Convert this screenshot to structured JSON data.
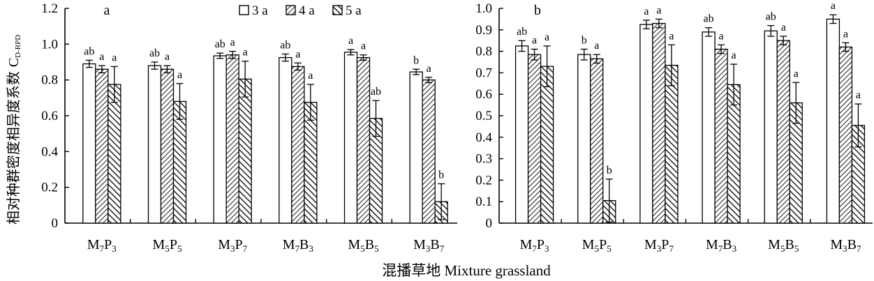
{
  "figure": {
    "ylabel": "相对种群密度相异度系数",
    "ylabel_symbol": "C",
    "ylabel_subscript": "D-RPD",
    "xlabel": "混播草地 Mixture grassland"
  },
  "legend": {
    "items": [
      {
        "label": "3 a",
        "pattern": "open"
      },
      {
        "label": "4 a",
        "pattern": "hatch-dense"
      },
      {
        "label": "5 a",
        "pattern": "hatch-coarse"
      }
    ],
    "position": "top-center of left panel"
  },
  "chart_data": [
    {
      "panel_label": "a",
      "type": "bar",
      "categories": [
        {
          "main": "M",
          "sub1": "7",
          "mid": "P",
          "sub2": "3"
        },
        {
          "main": "M",
          "sub1": "5",
          "mid": "P",
          "sub2": "5"
        },
        {
          "main": "M",
          "sub1": "3",
          "mid": "P",
          "sub2": "7"
        },
        {
          "main": "M",
          "sub1": "7",
          "mid": "B",
          "sub2": "3"
        },
        {
          "main": "M",
          "sub1": "5",
          "mid": "B",
          "sub2": "5"
        },
        {
          "main": "M",
          "sub1": "3",
          "mid": "B",
          "sub2": "7"
        }
      ],
      "ylim": [
        0,
        1.2
      ],
      "yticks": [
        "0",
        "0.2",
        "0.4",
        "0.6",
        "0.8",
        "1.0",
        "1.2"
      ],
      "grid": false,
      "series": [
        {
          "name": "3 a",
          "values": [
            0.89,
            0.88,
            0.935,
            0.925,
            0.955,
            0.845
          ],
          "errors": [
            0.02,
            0.02,
            0.015,
            0.02,
            0.015,
            0.015
          ],
          "letters": [
            "ab",
            "ab",
            "ab",
            "ab",
            "a",
            "b"
          ]
        },
        {
          "name": "4 a",
          "values": [
            0.86,
            0.86,
            0.94,
            0.875,
            0.925,
            0.8
          ],
          "errors": [
            0.02,
            0.02,
            0.02,
            0.02,
            0.015,
            0.015
          ],
          "letters": [
            "a",
            "a",
            "a",
            "a",
            "a",
            "a"
          ]
        },
        {
          "name": "5 a",
          "values": [
            0.775,
            0.68,
            0.805,
            0.675,
            0.585,
            0.12
          ],
          "errors": [
            0.1,
            0.1,
            0.1,
            0.1,
            0.1,
            0.1
          ],
          "letters": [
            "a",
            "a",
            "a",
            "a",
            "ab",
            "b"
          ]
        }
      ]
    },
    {
      "panel_label": "b",
      "type": "bar",
      "categories": [
        {
          "main": "M",
          "sub1": "7",
          "mid": "P",
          "sub2": "3"
        },
        {
          "main": "M",
          "sub1": "5",
          "mid": "P",
          "sub2": "5"
        },
        {
          "main": "M",
          "sub1": "3",
          "mid": "P",
          "sub2": "7"
        },
        {
          "main": "M",
          "sub1": "7",
          "mid": "B",
          "sub2": "3"
        },
        {
          "main": "M",
          "sub1": "5",
          "mid": "B",
          "sub2": "5"
        },
        {
          "main": "M",
          "sub1": "3",
          "mid": "B",
          "sub2": "7"
        }
      ],
      "ylim": [
        0,
        1.0
      ],
      "yticks": [
        "0",
        "0.1",
        "0.2",
        "0.3",
        "0.4",
        "0.5",
        "0.6",
        "0.7",
        "0.8",
        "0.9",
        "1.0"
      ],
      "grid": false,
      "series": [
        {
          "name": "3 a",
          "values": [
            0.825,
            0.785,
            0.925,
            0.89,
            0.895,
            0.95
          ],
          "errors": [
            0.025,
            0.025,
            0.02,
            0.02,
            0.025,
            0.02
          ],
          "letters": [
            "ab",
            "b",
            "a",
            "ab",
            "ab",
            "a"
          ]
        },
        {
          "name": "4 a",
          "values": [
            0.785,
            0.765,
            0.93,
            0.81,
            0.85,
            0.82
          ],
          "errors": [
            0.025,
            0.02,
            0.02,
            0.02,
            0.02,
            0.02
          ],
          "letters": [
            "a",
            "a",
            "a",
            "a",
            "a",
            "a"
          ]
        },
        {
          "name": "5 a",
          "values": [
            0.73,
            0.105,
            0.735,
            0.645,
            0.56,
            0.455
          ],
          "errors": [
            0.095,
            0.1,
            0.095,
            0.095,
            0.095,
            0.1
          ],
          "letters": [
            "a",
            "b",
            "a",
            "a",
            "a",
            "a"
          ]
        }
      ]
    }
  ]
}
